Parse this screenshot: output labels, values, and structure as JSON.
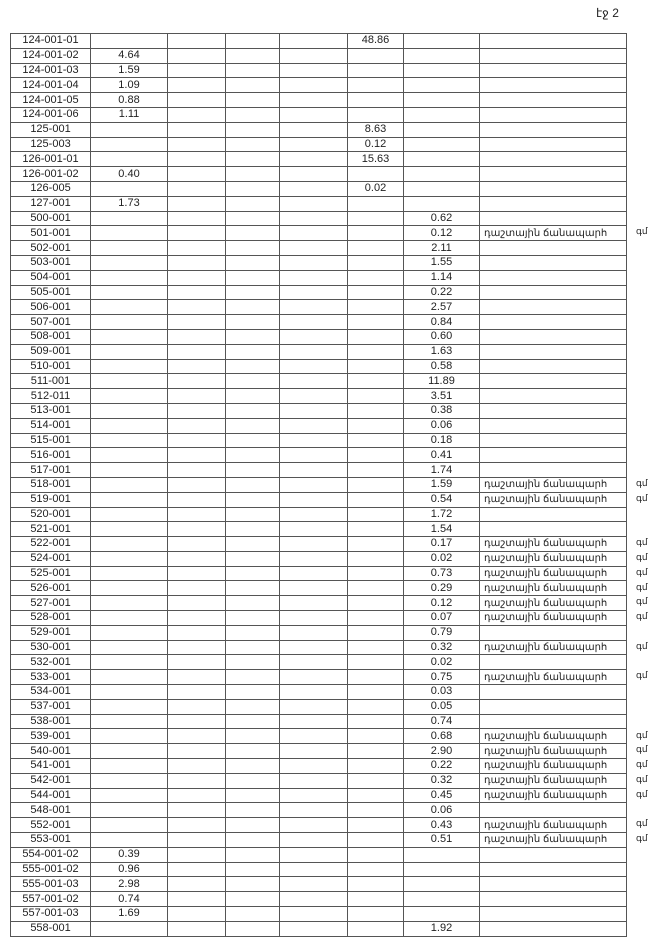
{
  "page_number": "էջ 2",
  "road_label": "դաշտային ճանապարհ",
  "rows": [
    [
      "124-001-01",
      "",
      "48.86",
      "",
      "",
      ""
    ],
    [
      "124-001-02",
      "4.64",
      "",
      "",
      "",
      ""
    ],
    [
      "124-001-03",
      "1.59",
      "",
      "",
      "",
      ""
    ],
    [
      "124-001-04",
      "1.09",
      "",
      "",
      "",
      ""
    ],
    [
      "124-001-05",
      "0.88",
      "",
      "",
      "",
      ""
    ],
    [
      "124-001-06",
      "1.11",
      "",
      "",
      "",
      ""
    ],
    [
      "125-001",
      "",
      "8.63",
      "",
      "",
      ""
    ],
    [
      "125-003",
      "",
      "0.12",
      "",
      "",
      ""
    ],
    [
      "126-001-01",
      "",
      "15.63",
      "",
      "",
      ""
    ],
    [
      "126-001-02",
      "0.40",
      "",
      "",
      "",
      ""
    ],
    [
      "126-005",
      "",
      "0.02",
      "",
      "",
      ""
    ],
    [
      "127-001",
      "1.73",
      "",
      "",
      "",
      ""
    ],
    [
      "500-001",
      "",
      "",
      "0.62",
      "",
      ""
    ],
    [
      "501-001",
      "",
      "",
      "0.12",
      "դաշտային ճանապարհ",
      "գմ"
    ],
    [
      "502-001",
      "",
      "",
      "2.11",
      "",
      ""
    ],
    [
      "503-001",
      "",
      "",
      "1.55",
      "",
      ""
    ],
    [
      "504-001",
      "",
      "",
      "1.14",
      "",
      ""
    ],
    [
      "505-001",
      "",
      "",
      "0.22",
      "",
      ""
    ],
    [
      "506-001",
      "",
      "",
      "2.57",
      "",
      ""
    ],
    [
      "507-001",
      "",
      "",
      "0.84",
      "",
      ""
    ],
    [
      "508-001",
      "",
      "",
      "0.60",
      "",
      ""
    ],
    [
      "509-001",
      "",
      "",
      "1.63",
      "",
      ""
    ],
    [
      "510-001",
      "",
      "",
      "0.58",
      "",
      ""
    ],
    [
      "511-001",
      "",
      "",
      "11.89",
      "",
      ""
    ],
    [
      "512-011",
      "",
      "",
      "3.51",
      "",
      ""
    ],
    [
      "513-001",
      "",
      "",
      "0.38",
      "",
      ""
    ],
    [
      "514-001",
      "",
      "",
      "0.06",
      "",
      ""
    ],
    [
      "515-001",
      "",
      "",
      "0.18",
      "",
      ""
    ],
    [
      "516-001",
      "",
      "",
      "0.41",
      "",
      ""
    ],
    [
      "517-001",
      "",
      "",
      "1.74",
      "",
      ""
    ],
    [
      "518-001",
      "",
      "",
      "1.59",
      "դաշտային ճանապարհ",
      "գմ"
    ],
    [
      "519-001",
      "",
      "",
      "0.54",
      "դաշտային ճանապարհ",
      "գմ"
    ],
    [
      "520-001",
      "",
      "",
      "1.72",
      "",
      ""
    ],
    [
      "521-001",
      "",
      "",
      "1.54",
      "",
      ""
    ],
    [
      "522-001",
      "",
      "",
      "0.17",
      "դաշտային ճանապարհ",
      "գմ"
    ],
    [
      "524-001",
      "",
      "",
      "0.02",
      "դաշտային ճանապարհ",
      "գմ"
    ],
    [
      "525-001",
      "",
      "",
      "0.73",
      "դաշտային ճանապարհ",
      "գմ"
    ],
    [
      "526-001",
      "",
      "",
      "0.29",
      "դաշտային ճանապարհ",
      "գմ"
    ],
    [
      "527-001",
      "",
      "",
      "0.12",
      "դաշտային ճանապարհ",
      "գմ"
    ],
    [
      "528-001",
      "",
      "",
      "0.07",
      "դաշտային ճանապարհ",
      "գմ"
    ],
    [
      "529-001",
      "",
      "",
      "0.79",
      "",
      ""
    ],
    [
      "530-001",
      "",
      "",
      "0.32",
      "դաշտային ճանապարհ",
      "գմ"
    ],
    [
      "532-001",
      "",
      "",
      "0.02",
      "",
      ""
    ],
    [
      "533-001",
      "",
      "",
      "0.75",
      "դաշտային ճանապարհ",
      "գմ"
    ],
    [
      "534-001",
      "",
      "",
      "0.03",
      "",
      ""
    ],
    [
      "537-001",
      "",
      "",
      "0.05",
      "",
      ""
    ],
    [
      "538-001",
      "",
      "",
      "0.74",
      "",
      ""
    ],
    [
      "539-001",
      "",
      "",
      "0.68",
      "դաշտային ճանապարհ",
      "գմ"
    ],
    [
      "540-001",
      "",
      "",
      "2.90",
      "դաշտային ճանապարհ",
      "գմ"
    ],
    [
      "541-001",
      "",
      "",
      "0.22",
      "դաշտային ճանապարհ",
      "գմ"
    ],
    [
      "542-001",
      "",
      "",
      "0.32",
      "դաշտային ճանապարհ",
      "գմ"
    ],
    [
      "544-001",
      "",
      "",
      "0.45",
      "դաշտային ճանապարհ",
      "գմ"
    ],
    [
      "548-001",
      "",
      "",
      "0.06",
      "",
      ""
    ],
    [
      "552-001",
      "",
      "",
      "0.43",
      "դաշտային ճանապարհ",
      "գմ"
    ],
    [
      "553-001",
      "",
      "",
      "0.51",
      "դաշտային ճանապարհ",
      "գմ"
    ],
    [
      "554-001-02",
      "0.39",
      "",
      "",
      "",
      ""
    ],
    [
      "555-001-02",
      "0.96",
      "",
      "",
      "",
      ""
    ],
    [
      "555-001-03",
      "2.98",
      "",
      "",
      "",
      ""
    ],
    [
      "557-001-02",
      "0.74",
      "",
      "",
      "",
      ""
    ],
    [
      "557-001-03",
      "1.69",
      "",
      "",
      "",
      ""
    ],
    [
      "558-001",
      "",
      "",
      "1.92",
      "",
      ""
    ]
  ]
}
